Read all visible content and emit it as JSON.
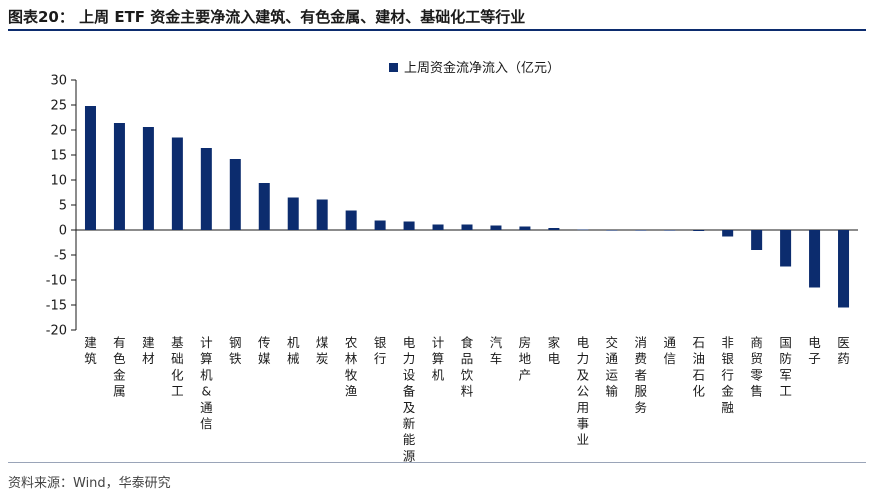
{
  "header": {
    "title": "图表20：  上周 ETF 资金主要净流入建筑、有色金属、建材、基础化工等行业"
  },
  "footer": {
    "source": "资料来源：Wind，华泰研究"
  },
  "colors": {
    "bar": "#0c2c6e",
    "axis": "#1a1a1a"
  },
  "chart_data": {
    "type": "bar",
    "title": "",
    "xlabel": "",
    "ylabel": "",
    "ylim": [
      -20,
      30
    ],
    "yticks": [
      30,
      25,
      20,
      15,
      10,
      5,
      0,
      -5,
      -10,
      -15,
      -20
    ],
    "legend": {
      "position": "top-right",
      "label": "上周资金流净流入（亿元）"
    },
    "categories": [
      "建筑",
      "有色金属",
      "建材",
      "基础化工",
      "计算机&通信",
      "钢铁",
      "传媒",
      "机械",
      "煤炭",
      "农林牧渔",
      "银行",
      "电力设备及新能源",
      "计算机",
      "食品饮料",
      "汽车",
      "房地产",
      "家电",
      "电力及公用事业",
      "交通运输",
      "消费者服务",
      "通信",
      "石油石化",
      "非银行金融",
      "商贸零售",
      "国防军工",
      "电子",
      "医药"
    ],
    "series": [
      {
        "name": "上周资金流净流入（亿元）",
        "values": [
          24.8,
          21.4,
          20.6,
          18.5,
          16.4,
          14.2,
          9.4,
          6.5,
          6.1,
          3.9,
          1.9,
          1.7,
          1.1,
          1.1,
          0.9,
          0.7,
          0.4,
          0.1,
          0.0,
          0.0,
          -0.05,
          -0.2,
          -1.3,
          -4.0,
          -7.3,
          -11.5,
          -15.5
        ]
      }
    ]
  }
}
